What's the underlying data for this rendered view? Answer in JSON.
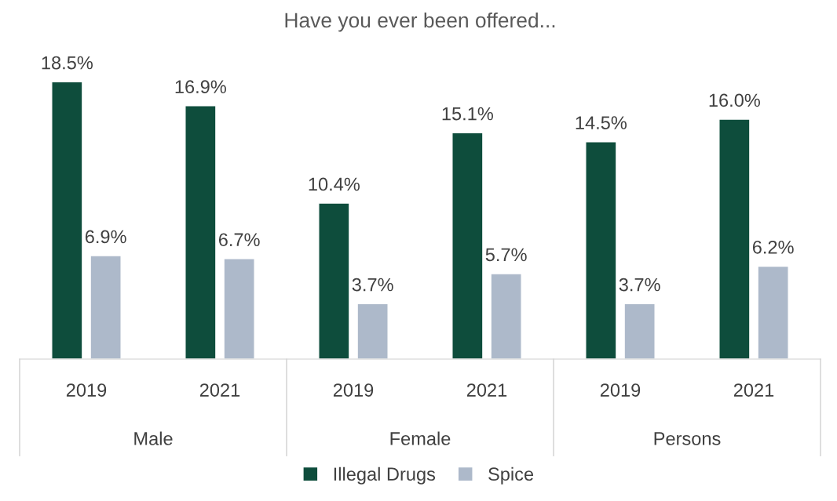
{
  "chart_data": {
    "type": "bar",
    "title": "Have you ever been offered...",
    "categories": [
      "2019",
      "2021",
      "2019",
      "2021",
      "2019",
      "2021"
    ],
    "series": [
      {
        "name": "Illegal Drugs",
        "color": "#0e4d3c",
        "values": [
          18.5,
          16.9,
          10.4,
          15.1,
          14.5,
          16.0
        ],
        "value_labels": [
          "18.5%",
          "16.9%",
          "10.4%",
          "15.1%",
          "14.5%",
          "16.0%"
        ]
      },
      {
        "name": "Spice",
        "color": "#adb9ca",
        "values": [
          6.9,
          6.7,
          3.7,
          5.7,
          3.7,
          6.2
        ],
        "value_labels": [
          "6.9%",
          "6.7%",
          "3.7%",
          "5.7%",
          "3.7%",
          "6.2%"
        ]
      }
    ],
    "annotations": [
      "Male",
      "Female",
      "Persons"
    ],
    "grid": false,
    "legend": "bottom",
    "tick_labels": "x"
  }
}
